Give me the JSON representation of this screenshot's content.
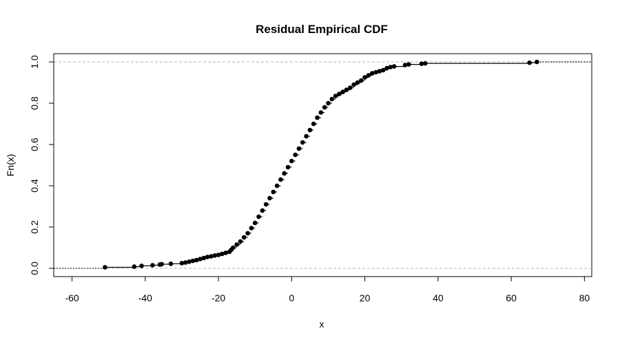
{
  "chart_data": {
    "type": "line",
    "subtype": "ecdf-step",
    "title": "Residual Empirical CDF",
    "xlabel": "x",
    "ylabel": "Fn(x)",
    "xlim": [
      -65,
      82
    ],
    "ylim": [
      -0.04,
      1.04
    ],
    "x_ticks": [
      -60,
      -40,
      -20,
      0,
      20,
      40,
      60,
      80
    ],
    "y_ticks": [
      0.0,
      0.2,
      0.4,
      0.6,
      0.8,
      1.0
    ],
    "y_tick_labels": [
      "0.0",
      "0.2",
      "0.4",
      "0.6",
      "0.8",
      "1.0"
    ],
    "reference_lines_y": [
      0,
      1
    ],
    "grid": false,
    "colors": {
      "points": "#000000",
      "line": "#000000",
      "reference": "#b3b3b3"
    },
    "series": [
      {
        "x": [
          -51,
          -43,
          -41,
          -38,
          -36,
          -35.5,
          -33,
          -30,
          -29,
          -28,
          -27,
          -26,
          -25,
          -24,
          -23,
          -22,
          -21,
          -20,
          -19,
          -18,
          -17,
          -16.5,
          -16,
          -15,
          -14,
          -13,
          -12,
          -11,
          -10,
          -9,
          -8,
          -7,
          -6,
          -5,
          -4,
          -3,
          -2,
          -1,
          0,
          1,
          2,
          3,
          4,
          5,
          6,
          7,
          8,
          9,
          10,
          11,
          12,
          13,
          14,
          15,
          16,
          17,
          18,
          19,
          20,
          21,
          22,
          23,
          24,
          25,
          26,
          27,
          28,
          31,
          32,
          35.5,
          36.5,
          65,
          67
        ],
        "y": [
          0.005,
          0.008,
          0.012,
          0.015,
          0.018,
          0.02,
          0.022,
          0.025,
          0.028,
          0.032,
          0.036,
          0.04,
          0.045,
          0.05,
          0.055,
          0.058,
          0.062,
          0.065,
          0.07,
          0.075,
          0.08,
          0.09,
          0.1,
          0.115,
          0.13,
          0.15,
          0.17,
          0.195,
          0.22,
          0.25,
          0.28,
          0.31,
          0.34,
          0.37,
          0.4,
          0.43,
          0.46,
          0.49,
          0.52,
          0.55,
          0.58,
          0.61,
          0.64,
          0.67,
          0.7,
          0.73,
          0.755,
          0.78,
          0.8,
          0.82,
          0.835,
          0.845,
          0.855,
          0.865,
          0.875,
          0.89,
          0.9,
          0.91,
          0.925,
          0.935,
          0.945,
          0.95,
          0.955,
          0.96,
          0.97,
          0.975,
          0.978,
          0.985,
          0.988,
          0.991,
          0.993,
          0.996,
          1.0
        ]
      }
    ]
  }
}
